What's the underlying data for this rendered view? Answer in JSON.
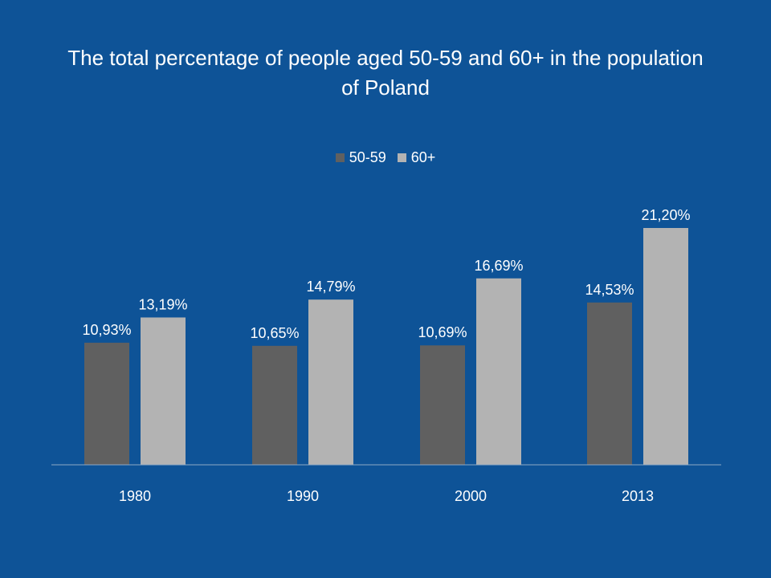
{
  "chart_data": {
    "type": "bar",
    "title": "The total percentage of people aged 50-59 and 60+ in the population of Poland",
    "categories": [
      "1980",
      "1990",
      "2000",
      "2013"
    ],
    "series": [
      {
        "name": "50-59",
        "color": "#606060",
        "values": [
          10.93,
          10.65,
          10.69,
          14.53
        ],
        "labels": [
          "10,93%",
          "10,65%",
          "10,69%",
          "14,53%"
        ]
      },
      {
        "name": "60+",
        "color": "#b3b3b3",
        "values": [
          13.19,
          14.79,
          16.69,
          21.2
        ],
        "labels": [
          "13,19%",
          "14,79%",
          "16,69%",
          "21,20%"
        ]
      }
    ],
    "ylim": [
      0,
      22
    ],
    "legend_position": "top",
    "grid": false
  }
}
